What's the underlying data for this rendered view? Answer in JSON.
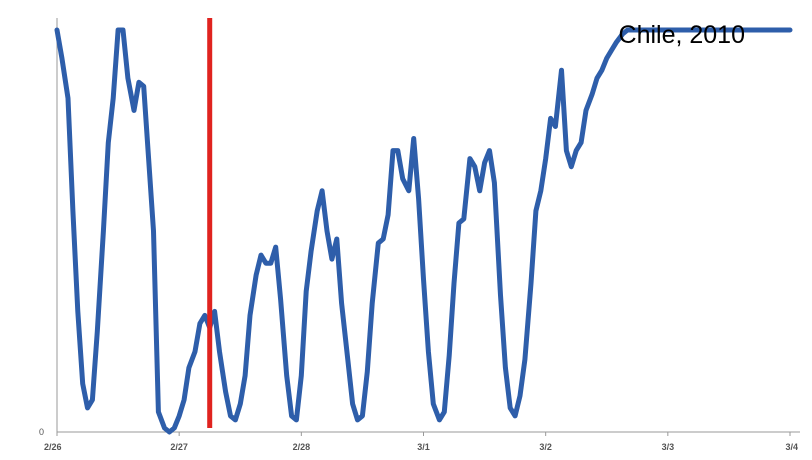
{
  "chart_data": {
    "type": "line",
    "title": "",
    "xlabel": "",
    "ylabel": "",
    "annotation": "Chile, 2010",
    "grid": false,
    "legend": "none",
    "x_ticks": [
      "2/26",
      "2/27",
      "2/28",
      "3/1",
      "3/2",
      "3/3",
      "3/4"
    ],
    "y_ticks": [
      "0"
    ],
    "xlim": [
      0,
      6
    ],
    "ylim": [
      0,
      100
    ],
    "event_marker": {
      "x": 1.25,
      "color": "#e0231f"
    },
    "colors": {
      "series": "#2e5eaa",
      "axis": "#999999",
      "event": "#e0231f"
    },
    "series": [
      {
        "x": [
          0.0,
          0.04,
          0.09,
          0.13,
          0.17,
          0.21,
          0.25,
          0.29,
          0.33,
          0.38,
          0.42,
          0.46,
          0.5,
          0.54,
          0.58,
          0.63,
          0.67,
          0.71,
          0.75,
          0.79,
          0.83,
          0.88,
          0.92,
          0.96,
          1.0,
          1.04,
          1.08,
          1.13,
          1.17,
          1.21,
          1.25,
          1.29,
          1.33,
          1.38,
          1.42,
          1.46,
          1.5,
          1.54,
          1.58,
          1.63,
          1.67,
          1.71,
          1.75,
          1.79,
          1.83,
          1.88,
          1.92,
          1.96,
          2.0,
          2.04,
          2.08,
          2.13,
          2.17,
          2.21,
          2.25,
          2.29,
          2.33,
          2.38,
          2.42,
          2.46,
          2.5,
          2.54,
          2.58,
          2.63,
          2.67,
          2.71,
          2.75,
          2.79,
          2.83,
          2.88,
          2.92,
          2.96,
          3.0,
          3.04,
          3.08,
          3.13,
          3.17,
          3.21,
          3.25,
          3.29,
          3.33,
          3.38,
          3.42,
          3.46,
          3.5,
          3.54,
          3.58,
          3.63,
          3.67,
          3.71,
          3.75,
          3.79,
          3.83,
          3.88,
          3.92,
          3.96,
          4.0,
          4.04,
          4.08,
          4.13,
          4.17,
          4.21,
          4.25,
          4.29,
          4.33,
          4.38,
          4.42,
          4.46,
          4.5,
          4.54,
          4.58,
          4.63,
          4.67,
          4.71,
          4.75,
          4.79,
          4.83,
          4.88,
          4.92,
          4.96,
          5.0,
          5.04,
          5.08,
          5.13,
          5.17,
          5.21,
          5.25,
          5.29,
          5.33,
          5.38,
          5.42,
          5.46,
          5.5,
          5.54,
          5.58,
          5.63,
          5.67,
          5.71,
          5.75,
          5.79,
          5.83,
          5.88,
          5.92,
          5.96,
          6.0
        ],
        "values": [
          100,
          93,
          83,
          55,
          30,
          12,
          6,
          8,
          25,
          50,
          72,
          83,
          100,
          100,
          88,
          80,
          87,
          86,
          68,
          50,
          5,
          1,
          0,
          1,
          4,
          8,
          16,
          20,
          27,
          29,
          26,
          30,
          20,
          10,
          4,
          3,
          7,
          14,
          29,
          39,
          44,
          42,
          42,
          46,
          33,
          14,
          4,
          3,
          14,
          35,
          45,
          55,
          60,
          50,
          43,
          48,
          32,
          18,
          7,
          3,
          4,
          15,
          32,
          47,
          48,
          54,
          70,
          70,
          63,
          60,
          73,
          58,
          38,
          20,
          7,
          3,
          5,
          19,
          37,
          52,
          53,
          68,
          66,
          60,
          67,
          70,
          62,
          34,
          16,
          6,
          4,
          9,
          18,
          37,
          55,
          60,
          68,
          78,
          76,
          90,
          70,
          66,
          70,
          72,
          80,
          84,
          88,
          90,
          93,
          95,
          97,
          99,
          100,
          100,
          100,
          100,
          100,
          100,
          100,
          100,
          100,
          100,
          100,
          100,
          100,
          100,
          100,
          100,
          100,
          100,
          100,
          100,
          100,
          100,
          100,
          100,
          100,
          100,
          100,
          100,
          100,
          100,
          100,
          100,
          100
        ]
      }
    ]
  }
}
